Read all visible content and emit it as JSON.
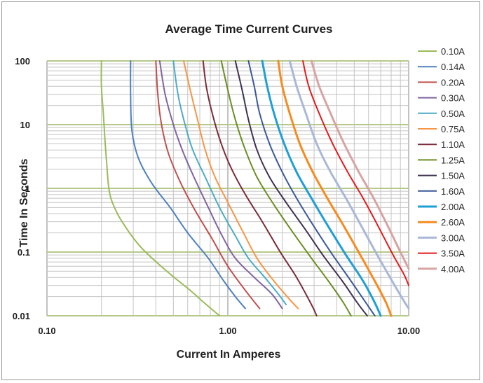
{
  "chart_data": {
    "type": "line",
    "title": "Average Time Current Curves",
    "xlabel": "Current In Amperes",
    "ylabel": "Time In Seconds",
    "x_scale": "log",
    "y_scale": "log",
    "xlim": [
      0.1,
      10
    ],
    "ylim": [
      0.01,
      100
    ],
    "x_ticks": [
      "0.10",
      "1.00",
      "10.00"
    ],
    "y_ticks": [
      "100",
      "10",
      "1",
      "0.1",
      "0.01"
    ],
    "grid": true,
    "legend_position": "right",
    "series": [
      {
        "name": "0.10A",
        "color": "#9bbb59",
        "points": [
          [
            0.2,
            100
          ],
          [
            0.2,
            40
          ],
          [
            0.205,
            15
          ],
          [
            0.21,
            5
          ],
          [
            0.215,
            2
          ],
          [
            0.22,
            1
          ],
          [
            0.23,
            0.6
          ],
          [
            0.26,
            0.3
          ],
          [
            0.33,
            0.12
          ],
          [
            0.46,
            0.05
          ],
          [
            0.62,
            0.025
          ],
          [
            0.74,
            0.016
          ],
          [
            0.9,
            0.01
          ]
        ]
      },
      {
        "name": "0.14A",
        "color": "#4f81bd",
        "points": [
          [
            0.29,
            100
          ],
          [
            0.29,
            30
          ],
          [
            0.295,
            8
          ],
          [
            0.32,
            3
          ],
          [
            0.38,
            1.2
          ],
          [
            0.48,
            0.5
          ],
          [
            0.6,
            0.2
          ],
          [
            0.78,
            0.08
          ],
          [
            0.95,
            0.035
          ],
          [
            1.1,
            0.02
          ],
          [
            1.25,
            0.013
          ]
        ]
      },
      {
        "name": "0.20A",
        "color": "#c0504d",
        "points": [
          [
            0.4,
            100
          ],
          [
            0.41,
            30
          ],
          [
            0.43,
            10
          ],
          [
            0.47,
            3.5
          ],
          [
            0.55,
            1.2
          ],
          [
            0.66,
            0.45
          ],
          [
            0.82,
            0.16
          ],
          [
            1.0,
            0.06
          ],
          [
            1.25,
            0.025
          ],
          [
            1.5,
            0.013
          ]
        ]
      },
      {
        "name": "0.30A",
        "color": "#8064a2",
        "points": [
          [
            0.42,
            100
          ],
          [
            0.45,
            30
          ],
          [
            0.5,
            10
          ],
          [
            0.56,
            4
          ],
          [
            0.65,
            1.5
          ],
          [
            0.78,
            0.5
          ],
          [
            0.93,
            0.18
          ],
          [
            1.1,
            0.08
          ],
          [
            1.4,
            0.04
          ],
          [
            1.75,
            0.022
          ],
          [
            2.0,
            0.013
          ]
        ]
      },
      {
        "name": "0.50A",
        "color": "#4bacc6",
        "points": [
          [
            0.5,
            100
          ],
          [
            0.53,
            30
          ],
          [
            0.58,
            10
          ],
          [
            0.64,
            4
          ],
          [
            0.75,
            1.5
          ],
          [
            0.9,
            0.5
          ],
          [
            1.1,
            0.18
          ],
          [
            1.3,
            0.08
          ],
          [
            1.6,
            0.04
          ],
          [
            1.9,
            0.022
          ],
          [
            2.1,
            0.015
          ]
        ]
      },
      {
        "name": "0.75A",
        "color": "#f79646",
        "points": [
          [
            0.57,
            100
          ],
          [
            0.62,
            35
          ],
          [
            0.68,
            12
          ],
          [
            0.75,
            4
          ],
          [
            0.85,
            1.5
          ],
          [
            1.0,
            0.6
          ],
          [
            1.2,
            0.22
          ],
          [
            1.45,
            0.08
          ],
          [
            1.8,
            0.035
          ],
          [
            2.2,
            0.018
          ],
          [
            2.45,
            0.013
          ]
        ]
      },
      {
        "name": "1.10A",
        "color": "#7b2c3a",
        "points": [
          [
            0.73,
            100
          ],
          [
            0.76,
            40
          ],
          [
            0.82,
            15
          ],
          [
            0.92,
            5
          ],
          [
            1.05,
            2
          ],
          [
            1.25,
            0.8
          ],
          [
            1.55,
            0.3
          ],
          [
            1.95,
            0.1
          ],
          [
            2.4,
            0.04
          ],
          [
            2.9,
            0.015
          ],
          [
            3.1,
            0.01
          ]
        ]
      },
      {
        "name": "1.25A",
        "color": "#6b8e23",
        "points": [
          [
            0.92,
            100
          ],
          [
            1.0,
            35
          ],
          [
            1.1,
            12
          ],
          [
            1.25,
            4
          ],
          [
            1.45,
            1.5
          ],
          [
            1.8,
            0.55
          ],
          [
            2.3,
            0.2
          ],
          [
            2.9,
            0.08
          ],
          [
            3.6,
            0.035
          ],
          [
            4.3,
            0.017
          ],
          [
            4.8,
            0.01
          ]
        ]
      },
      {
        "name": "1.50A",
        "color": "#403152",
        "points": [
          [
            1.1,
            100
          ],
          [
            1.2,
            35
          ],
          [
            1.3,
            12
          ],
          [
            1.45,
            4
          ],
          [
            1.7,
            1.5
          ],
          [
            2.1,
            0.6
          ],
          [
            2.7,
            0.22
          ],
          [
            3.4,
            0.085
          ],
          [
            4.3,
            0.035
          ],
          [
            5.2,
            0.016
          ],
          [
            5.9,
            0.01
          ]
        ]
      },
      {
        "name": "1.60A",
        "color": "#3b5998",
        "points": [
          [
            1.3,
            100
          ],
          [
            1.4,
            40
          ],
          [
            1.5,
            15
          ],
          [
            1.7,
            5
          ],
          [
            2.0,
            1.8
          ],
          [
            2.4,
            0.7
          ],
          [
            3.0,
            0.25
          ],
          [
            3.8,
            0.09
          ],
          [
            4.8,
            0.035
          ],
          [
            5.8,
            0.016
          ],
          [
            6.5,
            0.01
          ]
        ]
      },
      {
        "name": "2.00A",
        "color": "#1f9fd5",
        "width": 3,
        "points": [
          [
            1.55,
            100
          ],
          [
            1.65,
            40
          ],
          [
            1.8,
            15
          ],
          [
            2.05,
            5
          ],
          [
            2.4,
            1.8
          ],
          [
            2.9,
            0.7
          ],
          [
            3.6,
            0.25
          ],
          [
            4.5,
            0.09
          ],
          [
            5.6,
            0.035
          ],
          [
            6.5,
            0.016
          ],
          [
            7.0,
            0.01
          ]
        ]
      },
      {
        "name": "2.60A",
        "color": "#f68b1f",
        "width": 3,
        "points": [
          [
            1.9,
            100
          ],
          [
            2.0,
            40
          ],
          [
            2.2,
            15
          ],
          [
            2.5,
            5
          ],
          [
            2.95,
            1.8
          ],
          [
            3.55,
            0.7
          ],
          [
            4.4,
            0.25
          ],
          [
            5.4,
            0.09
          ],
          [
            6.5,
            0.035
          ],
          [
            7.5,
            0.016
          ],
          [
            8.0,
            0.01
          ]
        ]
      },
      {
        "name": "3.00A",
        "color": "#a9b8d8",
        "width": 3,
        "points": [
          [
            2.2,
            100
          ],
          [
            2.4,
            40
          ],
          [
            2.7,
            15
          ],
          [
            3.1,
            5
          ],
          [
            3.7,
            1.8
          ],
          [
            4.5,
            0.7
          ],
          [
            5.5,
            0.25
          ],
          [
            6.7,
            0.09
          ],
          [
            8.1,
            0.035
          ],
          [
            9.3,
            0.018
          ],
          [
            10.0,
            0.013
          ]
        ]
      },
      {
        "name": "3.50A",
        "color": "#e31a1c",
        "points": [
          [
            2.6,
            100
          ],
          [
            2.8,
            40
          ],
          [
            3.2,
            15
          ],
          [
            3.8,
            5
          ],
          [
            4.6,
            1.8
          ],
          [
            5.6,
            0.7
          ],
          [
            6.8,
            0.25
          ],
          [
            8.2,
            0.09
          ],
          [
            9.4,
            0.045
          ],
          [
            10.0,
            0.03
          ]
        ]
      },
      {
        "name": "4.00A",
        "color": "#d9a3a3",
        "width": 3,
        "points": [
          [
            2.9,
            100
          ],
          [
            3.2,
            40
          ],
          [
            3.7,
            15
          ],
          [
            4.4,
            5
          ],
          [
            5.3,
            1.8
          ],
          [
            6.4,
            0.7
          ],
          [
            7.7,
            0.25
          ],
          [
            9.0,
            0.1
          ],
          [
            10.0,
            0.055
          ]
        ]
      }
    ]
  }
}
